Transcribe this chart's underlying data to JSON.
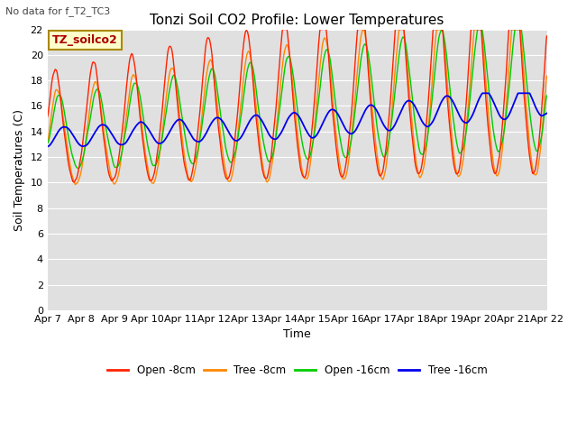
{
  "title": "Tonzi Soil CO2 Profile: Lower Temperatures",
  "subtitle": "No data for f_T2_TC3",
  "ylabel": "Soil Temperatures (C)",
  "xlabel": "Time",
  "annotation": "TZ_soilco2",
  "xlim": [
    0,
    15
  ],
  "ylim": [
    0,
    22
  ],
  "yticks": [
    0,
    2,
    4,
    6,
    8,
    10,
    12,
    14,
    16,
    18,
    20,
    22
  ],
  "xtick_labels": [
    "Apr 7",
    "Apr 8",
    "Apr 9",
    "Apr 10",
    "Apr 11",
    "Apr 12",
    "Apr 13",
    "Apr 14",
    "Apr 15",
    "Apr 16",
    "Apr 17",
    "Apr 18",
    "Apr 19",
    "Apr 20",
    "Apr 21",
    "Apr 22"
  ],
  "legend_entries": [
    "Open -8cm",
    "Tree -8cm",
    "Open -16cm",
    "Tree -16cm"
  ],
  "legend_colors": [
    "#ff2200",
    "#ff8800",
    "#00cc00",
    "#0000ee"
  ],
  "bg_color": "#e0e0e0",
  "grid_color": "#ffffff",
  "title_fontsize": 11,
  "subtitle_fontsize": 8,
  "tick_fontsize": 8,
  "ylabel_fontsize": 9,
  "annotation_fontsize": 9
}
